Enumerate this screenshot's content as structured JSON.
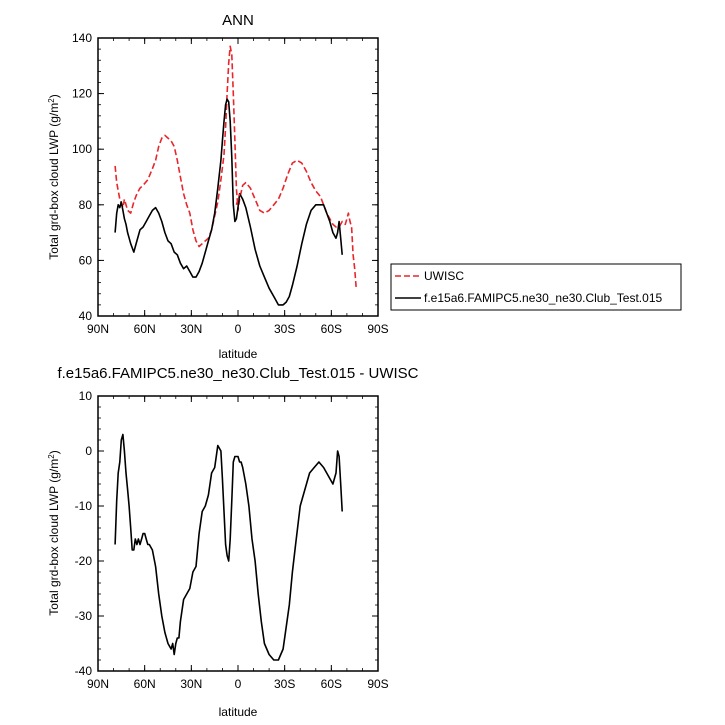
{
  "chart_data": [
    {
      "type": "line",
      "title": "ANN",
      "xlabel": "latitude",
      "ylabel": "Total grd-box cloud LWP (g/m²)",
      "xlim": [
        90,
        -90
      ],
      "ylim": [
        40,
        140
      ],
      "xticks": [
        {
          "value": 90,
          "label": "90N"
        },
        {
          "value": 60,
          "label": "60N"
        },
        {
          "value": 30,
          "label": "30N"
        },
        {
          "value": 0,
          "label": "0"
        },
        {
          "value": -30,
          "label": "30S"
        },
        {
          "value": -60,
          "label": "60S"
        },
        {
          "value": -90,
          "label": "90S"
        }
      ],
      "yticks": [
        40,
        60,
        80,
        100,
        120,
        140
      ],
      "legend_placement": "right",
      "series": [
        {
          "name": "UWISC",
          "color": "#e8262b",
          "dash": "dashed",
          "x": [
            79,
            78,
            76,
            74,
            73,
            71,
            69,
            67,
            65,
            63,
            61,
            58,
            55,
            53,
            51,
            49,
            47,
            45,
            43,
            41,
            39,
            37,
            35,
            33,
            31,
            29,
            27,
            25,
            23,
            21,
            19,
            17,
            15,
            13,
            11,
            9,
            8,
            7,
            6,
            5,
            4,
            3,
            2,
            1,
            0,
            -1,
            -3,
            -5,
            -8,
            -11,
            -14,
            -17,
            -20,
            -23,
            -26,
            -29,
            -32,
            -35,
            -38,
            -41,
            -44,
            -47,
            -50,
            -53,
            -55,
            -57,
            -59,
            -61,
            -63,
            -65,
            -67,
            -69,
            -70,
            -71,
            -72,
            -73,
            -74,
            -75,
            -76
          ],
          "y": [
            94,
            88,
            82,
            79,
            82,
            78,
            77,
            81,
            84,
            86,
            87,
            89,
            93,
            96,
            101,
            104,
            105,
            104,
            103,
            101,
            96,
            90,
            84,
            80,
            77,
            71,
            67,
            65,
            66,
            67,
            68,
            71,
            76,
            81,
            89,
            98,
            108,
            120,
            131,
            137,
            134,
            120,
            103,
            86,
            78,
            82,
            87,
            88,
            86,
            82,
            78,
            77,
            78,
            80,
            82,
            86,
            91,
            95,
            96,
            95,
            92,
            88,
            85,
            83,
            80,
            77,
            75,
            73,
            72,
            72,
            74,
            73,
            75,
            77,
            74,
            72,
            62,
            57,
            50
          ]
        },
        {
          "name": "f.e15a6.FAMIPC5.ne30_ne30.Club_Test.015",
          "color": "#000000",
          "dash": "solid",
          "x": [
            79,
            78,
            77,
            76,
            75,
            74,
            73,
            72,
            71,
            69,
            67,
            65,
            63,
            61,
            59,
            57,
            55,
            53,
            51,
            49,
            47,
            45,
            43,
            41,
            39,
            37,
            35,
            33,
            31,
            29,
            27,
            25,
            23,
            21,
            19,
            17,
            15,
            13,
            11,
            10,
            9,
            8,
            7,
            6,
            5,
            4,
            3,
            2,
            1,
            0,
            -1,
            -3,
            -5,
            -8,
            -11,
            -14,
            -17,
            -20,
            -23,
            -26,
            -29,
            -31,
            -33,
            -35,
            -38,
            -41,
            -44,
            -47,
            -50,
            -53,
            -55,
            -57,
            -59,
            -61,
            -63,
            -64,
            -65,
            -66,
            -67
          ],
          "y": [
            70,
            77,
            80,
            79,
            81,
            78,
            75,
            73,
            70,
            66,
            63,
            67,
            71,
            72,
            74,
            76,
            78,
            79,
            77,
            74,
            70,
            67,
            66,
            63,
            62,
            59,
            57,
            58,
            56,
            54,
            54,
            56,
            59,
            63,
            67,
            71,
            77,
            86,
            96,
            103,
            110,
            116,
            118,
            117,
            110,
            97,
            80,
            74,
            75,
            79,
            84,
            82,
            79,
            72,
            64,
            58,
            54,
            50,
            47,
            44,
            44,
            45,
            47,
            51,
            58,
            66,
            73,
            78,
            80,
            80,
            80,
            77,
            74,
            70,
            68,
            70,
            74,
            68,
            62
          ]
        },
        {
          "name": "",
          "color": "#e8262b",
          "dash": "dashed",
          "x": [
            1,
            -1
          ],
          "y": [
            80,
            84
          ]
        }
      ]
    },
    {
      "type": "line",
      "title": "f.e15a6.FAMIPC5.ne30_ne30.Club_Test.015 - UWISC",
      "xlabel": "latitude",
      "ylabel": "Total grd-box cloud LWP (g/m²)",
      "xlim": [
        90,
        -90
      ],
      "ylim": [
        -40,
        10
      ],
      "xticks": [
        {
          "value": 90,
          "label": "90N"
        },
        {
          "value": 60,
          "label": "60N"
        },
        {
          "value": 30,
          "label": "30N"
        },
        {
          "value": 0,
          "label": "0"
        },
        {
          "value": -30,
          "label": "30S"
        },
        {
          "value": -60,
          "label": "60S"
        },
        {
          "value": -90,
          "label": "90S"
        }
      ],
      "yticks": [
        -40,
        -30,
        -20,
        -10,
        0,
        10
      ],
      "series": [
        {
          "name": "",
          "color": "#000000",
          "dash": "solid",
          "x": [
            79,
            78,
            77,
            76,
            75,
            74,
            73,
            72,
            71,
            70,
            69,
            68,
            67,
            66,
            65,
            64,
            63,
            62,
            61,
            60,
            59,
            58,
            57,
            55,
            53,
            51,
            49,
            47,
            45,
            43,
            42,
            41,
            40,
            39,
            38,
            37,
            36,
            35,
            33,
            31,
            29,
            27,
            25,
            23,
            21,
            19,
            17,
            15,
            13,
            11,
            10,
            9,
            8,
            7,
            6,
            5,
            4,
            3,
            2,
            1,
            0,
            -1,
            -2,
            -3,
            -5,
            -7,
            -9,
            -11,
            -13,
            -15,
            -17,
            -20,
            -23,
            -26,
            -29,
            -31,
            -33,
            -35,
            -37,
            -40,
            -43,
            -46,
            -49,
            -52,
            -55,
            -57,
            -59,
            -61,
            -63,
            -64,
            -65,
            -66,
            -67
          ],
          "y": [
            -17,
            -9,
            -4,
            -2,
            2,
            3,
            0,
            -4,
            -7,
            -10,
            -14,
            -18,
            -18,
            -16,
            -17,
            -16,
            -17,
            -16,
            -15,
            -15,
            -16,
            -17,
            -17,
            -18,
            -21,
            -26,
            -30,
            -33,
            -35,
            -36,
            -35,
            -37,
            -35,
            -34,
            -34,
            -31,
            -29,
            -27,
            -26,
            -25,
            -22,
            -21,
            -15,
            -11,
            -10,
            -8,
            -4,
            -3,
            1,
            0,
            -5,
            -11,
            -17,
            -19,
            -20,
            -16,
            -9,
            -2,
            -1,
            -1,
            -1,
            -2,
            -2,
            -3,
            -6,
            -10,
            -16,
            -20,
            -26,
            -31,
            -35,
            -37,
            -38,
            -38,
            -36,
            -32,
            -28,
            -22,
            -17,
            -10,
            -7,
            -4,
            -3,
            -2,
            -3,
            -4,
            -5,
            -6,
            -4,
            0,
            -1,
            -6,
            -11
          ]
        }
      ]
    }
  ]
}
